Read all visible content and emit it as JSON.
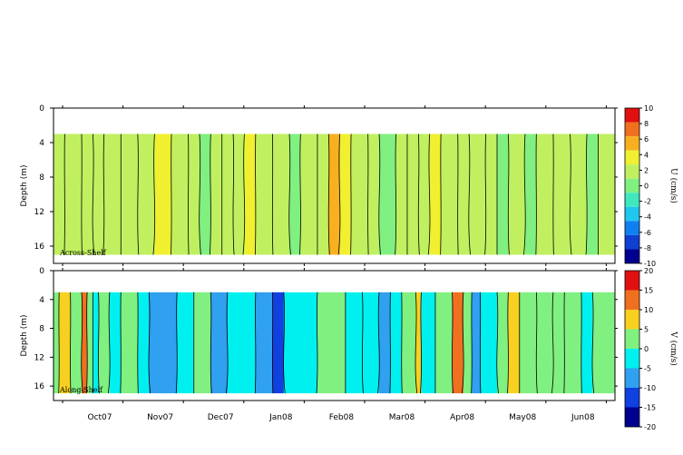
{
  "chart_data": [
    {
      "type": "heatmap",
      "panel_label": "Across-Shelf",
      "ylabel": "Depth (m)",
      "yticks": [
        "0",
        "4",
        "8",
        "12",
        "16"
      ],
      "ylim": [
        0,
        18
      ],
      "data_depth_range": [
        3,
        17
      ],
      "xticks": [
        "Oct07",
        "Nov07",
        "Dec07",
        "Jan08",
        "Feb08",
        "Mar08",
        "Apr08",
        "May08",
        "Jun08"
      ],
      "colorbar": {
        "title": "U (cm/s)",
        "levels": [
          10,
          8,
          6,
          4,
          2,
          0,
          -2,
          -4,
          -6,
          -8,
          -10
        ],
        "colors": [
          "#e01010",
          "#f07020",
          "#f8b020",
          "#f0f030",
          "#c0f060",
          "#80f080",
          "#40e8c0",
          "#20c8f0",
          "#1080f0",
          "#1040d0",
          "#000090"
        ]
      },
      "columns": [
        {
          "x": 0.0,
          "v": 0
        },
        {
          "x": 0.02,
          "v": 1
        },
        {
          "x": 0.05,
          "v": 0
        },
        {
          "x": 0.07,
          "v": 1
        },
        {
          "x": 0.09,
          "v": 0
        },
        {
          "x": 0.12,
          "v": 1
        },
        {
          "x": 0.15,
          "v": 0
        },
        {
          "x": 0.18,
          "v": 2
        },
        {
          "x": 0.21,
          "v": 1
        },
        {
          "x": 0.24,
          "v": 0
        },
        {
          "x": 0.26,
          "v": -1
        },
        {
          "x": 0.28,
          "v": 1
        },
        {
          "x": 0.3,
          "v": 0
        },
        {
          "x": 0.32,
          "v": 1
        },
        {
          "x": 0.34,
          "v": 3
        },
        {
          "x": 0.36,
          "v": 1
        },
        {
          "x": 0.39,
          "v": 0
        },
        {
          "x": 0.42,
          "v": -1
        },
        {
          "x": 0.44,
          "v": 0
        },
        {
          "x": 0.47,
          "v": 1
        },
        {
          "x": 0.49,
          "v": 4
        },
        {
          "x": 0.51,
          "v": 2
        },
        {
          "x": 0.53,
          "v": 1
        },
        {
          "x": 0.56,
          "v": 0
        },
        {
          "x": 0.58,
          "v": -1
        },
        {
          "x": 0.61,
          "v": 1
        },
        {
          "x": 0.63,
          "v": 0
        },
        {
          "x": 0.65,
          "v": 1
        },
        {
          "x": 0.67,
          "v": 3
        },
        {
          "x": 0.69,
          "v": 1
        },
        {
          "x": 0.72,
          "v": 0
        },
        {
          "x": 0.74,
          "v": 1
        },
        {
          "x": 0.77,
          "v": 0
        },
        {
          "x": 0.79,
          "v": -1
        },
        {
          "x": 0.81,
          "v": 0
        },
        {
          "x": 0.84,
          "v": -1
        },
        {
          "x": 0.86,
          "v": 0
        },
        {
          "x": 0.89,
          "v": 1
        },
        {
          "x": 0.92,
          "v": 0
        },
        {
          "x": 0.95,
          "v": -1
        },
        {
          "x": 0.97,
          "v": 0
        }
      ]
    },
    {
      "type": "heatmap",
      "panel_label": "Along-Shelf",
      "ylabel": "Depth (m)",
      "yticks": [
        "0",
        "4",
        "8",
        "12",
        "16"
      ],
      "ylim": [
        0,
        18
      ],
      "data_depth_range": [
        3,
        17
      ],
      "xticks": [
        "Oct07",
        "Nov07",
        "Dec07",
        "Jan08",
        "Feb08",
        "Mar08",
        "Apr08",
        "May08",
        "Jun08"
      ],
      "colorbar": {
        "title": "V (cm/s)",
        "levels": [
          20,
          15,
          10,
          5,
          0,
          -5,
          -10,
          -15,
          -20
        ],
        "colors": [
          "#e01010",
          "#f07020",
          "#f8d020",
          "#80f080",
          "#00f0f0",
          "#30a0f0",
          "#1040e0",
          "#000090"
        ]
      },
      "columns": [
        {
          "x": 0.0,
          "v": 3
        },
        {
          "x": 0.01,
          "v": 6
        },
        {
          "x": 0.03,
          "v": 2
        },
        {
          "x": 0.05,
          "v": 12
        },
        {
          "x": 0.06,
          "v": 3
        },
        {
          "x": 0.07,
          "v": -3
        },
        {
          "x": 0.08,
          "v": 2
        },
        {
          "x": 0.1,
          "v": -3
        },
        {
          "x": 0.12,
          "v": 0
        },
        {
          "x": 0.15,
          "v": -2
        },
        {
          "x": 0.17,
          "v": -8
        },
        {
          "x": 0.22,
          "v": -4
        },
        {
          "x": 0.25,
          "v": 1
        },
        {
          "x": 0.28,
          "v": -9
        },
        {
          "x": 0.31,
          "v": -3
        },
        {
          "x": 0.36,
          "v": -6
        },
        {
          "x": 0.39,
          "v": -15
        },
        {
          "x": 0.41,
          "v": -3
        },
        {
          "x": 0.47,
          "v": 0
        },
        {
          "x": 0.52,
          "v": -4
        },
        {
          "x": 0.55,
          "v": -3
        },
        {
          "x": 0.58,
          "v": -7
        },
        {
          "x": 0.6,
          "v": -3
        },
        {
          "x": 0.62,
          "v": 2
        },
        {
          "x": 0.645,
          "v": 7
        },
        {
          "x": 0.655,
          "v": -3
        },
        {
          "x": 0.68,
          "v": 1
        },
        {
          "x": 0.71,
          "v": 12
        },
        {
          "x": 0.73,
          "v": 2
        },
        {
          "x": 0.745,
          "v": -7
        },
        {
          "x": 0.76,
          "v": -3
        },
        {
          "x": 0.79,
          "v": 2
        },
        {
          "x": 0.81,
          "v": 6
        },
        {
          "x": 0.83,
          "v": 1
        },
        {
          "x": 0.86,
          "v": 1
        },
        {
          "x": 0.89,
          "v": 3
        },
        {
          "x": 0.91,
          "v": 1
        },
        {
          "x": 0.94,
          "v": -3
        },
        {
          "x": 0.96,
          "v": 1
        }
      ]
    }
  ]
}
